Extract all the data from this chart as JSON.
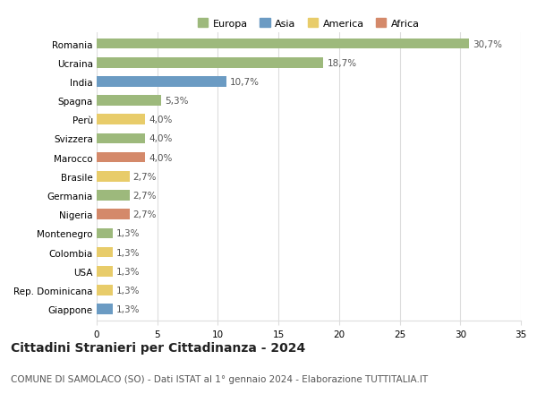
{
  "countries": [
    "Romania",
    "Ucraina",
    "India",
    "Spagna",
    "Perù",
    "Svizzera",
    "Marocco",
    "Brasile",
    "Germania",
    "Nigeria",
    "Montenegro",
    "Colombia",
    "USA",
    "Rep. Dominicana",
    "Giappone"
  ],
  "values": [
    30.7,
    18.7,
    10.7,
    5.3,
    4.0,
    4.0,
    4.0,
    2.7,
    2.7,
    2.7,
    1.3,
    1.3,
    1.3,
    1.3,
    1.3
  ],
  "labels": [
    "30,7%",
    "18,7%",
    "10,7%",
    "5,3%",
    "4,0%",
    "4,0%",
    "4,0%",
    "2,7%",
    "2,7%",
    "2,7%",
    "1,3%",
    "1,3%",
    "1,3%",
    "1,3%",
    "1,3%"
  ],
  "continents": [
    "Europa",
    "Europa",
    "Asia",
    "Europa",
    "America",
    "Europa",
    "Africa",
    "America",
    "Europa",
    "Africa",
    "Europa",
    "America",
    "America",
    "America",
    "Asia"
  ],
  "continent_colors": {
    "Europa": "#9db97c",
    "Asia": "#6b9bc3",
    "America": "#e8cc6a",
    "Africa": "#d4896a"
  },
  "legend_order": [
    "Europa",
    "Asia",
    "America",
    "Africa"
  ],
  "title": "Cittadini Stranieri per Cittadinanza - 2024",
  "subtitle": "COMUNE DI SAMOLACO (SO) - Dati ISTAT al 1° gennaio 2024 - Elaborazione TUTTITALIA.IT",
  "xlim": [
    0,
    35
  ],
  "xticks": [
    0,
    5,
    10,
    15,
    20,
    25,
    30,
    35
  ],
  "background_color": "#ffffff",
  "grid_color": "#dddddd",
  "bar_height": 0.55,
  "label_fontsize": 7.5,
  "tick_fontsize": 7.5,
  "title_fontsize": 10,
  "subtitle_fontsize": 7.5
}
